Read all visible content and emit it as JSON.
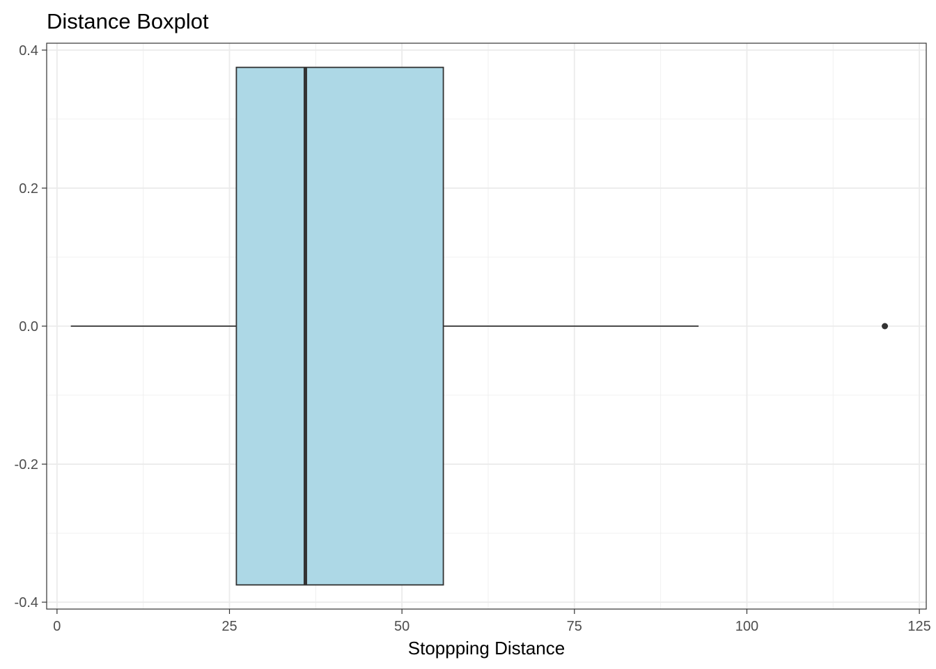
{
  "chart_data": {
    "type": "boxplot",
    "title": "Distance Boxplot",
    "xlabel": "Stoppping Distance",
    "ylabel": "",
    "xlim": [
      -1.5,
      126
    ],
    "ylim": [
      -0.41,
      0.41
    ],
    "x_ticks": [
      {
        "value": 0,
        "label": "0"
      },
      {
        "value": 25,
        "label": "25"
      },
      {
        "value": 50,
        "label": "50"
      },
      {
        "value": 75,
        "label": "75"
      },
      {
        "value": 100,
        "label": "100"
      },
      {
        "value": 125,
        "label": "125"
      }
    ],
    "y_ticks": [
      {
        "value": 0.4,
        "label": "0.4"
      },
      {
        "value": 0.2,
        "label": "0.2"
      },
      {
        "value": 0.0,
        "label": "0.0"
      },
      {
        "value": -0.2,
        "label": "-0.2"
      },
      {
        "value": -0.4,
        "label": "-0.4"
      }
    ],
    "box": {
      "whisker_low": 2,
      "q1": 26,
      "median": 36,
      "q3": 56,
      "whisker_high": 93,
      "outliers": [
        120
      ],
      "y_center": 0.0,
      "half_width": 0.375
    },
    "fill_color": "#add8e6",
    "line_color": "#333333",
    "grid": true,
    "legend": "none"
  }
}
